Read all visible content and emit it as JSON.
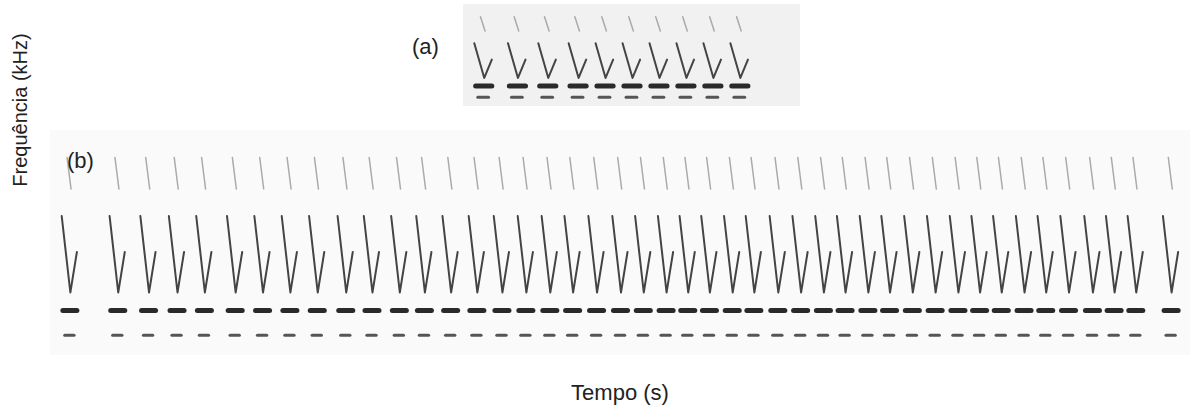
{
  "chart_data": {
    "type": "spectrogram",
    "xlabel": "Tempo (s)",
    "ylabel": "Frequência (kHz)",
    "tick_labels": false,
    "panels": [
      {
        "label": "(a)",
        "xlim": [
          0,
          100
        ],
        "syllables": [
          6,
          16,
          25,
          34,
          42,
          50,
          58,
          66,
          74,
          82
        ]
      },
      {
        "label": "(b)",
        "xlim": [
          0,
          100
        ],
        "syllables": [
          1.7,
          5.9,
          8.6,
          11.1,
          13.5,
          16.2,
          18.6,
          21.0,
          23.4,
          25.9,
          28.2,
          30.6,
          32.8,
          35.1,
          37.4,
          39.6,
          41.7,
          43.8,
          45.8,
          47.9,
          50.0,
          52.0,
          54.0,
          55.9,
          57.8,
          59.8,
          61.7,
          63.8,
          65.8,
          67.8,
          69.7,
          71.7,
          73.6,
          75.6,
          77.6,
          79.6,
          81.5,
          83.4,
          85.4,
          87.3,
          89.3,
          91.4,
          93.3,
          95.2,
          98.3
        ]
      }
    ]
  }
}
